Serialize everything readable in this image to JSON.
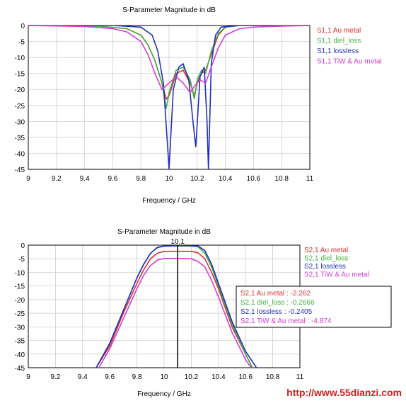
{
  "watermark": "http://www.55dianzi.com",
  "chart_data": [
    {
      "type": "line",
      "title": "S-Parameter Magnitude in dB",
      "xlabel": "Frequency / GHz",
      "ylabel": "",
      "xlim": [
        9,
        11
      ],
      "ylim": [
        -45,
        0
      ],
      "xticks": [
        "9",
        "9.2",
        "9.4",
        "9.6",
        "9.8",
        "10",
        "10.2",
        "10.4",
        "10.6",
        "10.8",
        "11"
      ],
      "yticks": [
        "0",
        "-5",
        "-10",
        "-15",
        "-20",
        "-25",
        "-30",
        "-35",
        "-40",
        "-45"
      ],
      "grid": true,
      "legend_position": "right",
      "series": [
        {
          "name": "S1,1 Au metal",
          "color": "#e03030",
          "x": [
            9.0,
            9.5,
            9.7,
            9.8,
            9.85,
            9.9,
            9.95,
            9.98,
            10.0,
            10.05,
            10.1,
            10.15,
            10.18,
            10.2,
            10.23,
            10.26,
            10.3,
            10.35,
            10.4,
            10.5,
            11.0
          ],
          "y": [
            0,
            -0.2,
            -1,
            -3,
            -6,
            -11,
            -18,
            -23,
            -22,
            -15,
            -14,
            -18,
            -22,
            -18,
            -15,
            -14,
            -9,
            -3,
            -0.5,
            0,
            0
          ]
        },
        {
          "name": "S1,1 diel_loss",
          "color": "#40b040",
          "x": [
            9.0,
            9.5,
            9.7,
            9.8,
            9.85,
            9.9,
            9.95,
            9.98,
            10.0,
            10.05,
            10.1,
            10.15,
            10.18,
            10.2,
            10.23,
            10.26,
            10.3,
            10.35,
            10.4,
            10.5,
            11.0
          ],
          "y": [
            0,
            -0.2,
            -1,
            -3,
            -6,
            -11,
            -18,
            -26,
            -21,
            -14,
            -13,
            -17,
            -23,
            -17,
            -14,
            -15,
            -8,
            -2.5,
            -0.5,
            0,
            0
          ]
        },
        {
          "name": "S1,1 lossless",
          "color": "#2030c0",
          "x": [
            9.0,
            9.6,
            9.8,
            9.88,
            9.92,
            9.96,
            9.99,
            10.0,
            10.03,
            10.07,
            10.1,
            10.14,
            10.17,
            10.19,
            10.22,
            10.25,
            10.27,
            10.28,
            10.3,
            10.33,
            10.37,
            10.5,
            11.0
          ],
          "y": [
            0,
            0,
            -0.5,
            -3,
            -8,
            -18,
            -38,
            -45,
            -20,
            -13,
            -12,
            -17,
            -30,
            -38,
            -16,
            -13,
            -30,
            -45,
            -12,
            -3,
            -0.5,
            0,
            0
          ]
        },
        {
          "name": "S1,1 TiW & Au metal",
          "color": "#d040d0",
          "x": [
            9.0,
            9.4,
            9.6,
            9.7,
            9.8,
            9.85,
            9.9,
            9.95,
            10.0,
            10.05,
            10.1,
            10.15,
            10.18,
            10.22,
            10.26,
            10.3,
            10.35,
            10.4,
            10.5,
            10.6,
            10.8,
            11.0
          ],
          "y": [
            0,
            -0.3,
            -1,
            -2,
            -5,
            -9,
            -15,
            -20,
            -18,
            -16,
            -18,
            -21,
            -19,
            -17,
            -18,
            -13,
            -7,
            -3,
            -1,
            -0.5,
            -0.2,
            0
          ]
        }
      ]
    },
    {
      "type": "line",
      "title": "S-Parameter Magnitude in dB",
      "xlabel": "Frequency / GHz",
      "ylabel": "",
      "xlim": [
        9,
        11
      ],
      "ylim": [
        -45,
        0
      ],
      "xticks": [
        "9",
        "9.2",
        "9.4",
        "9.6",
        "9.8",
        "10",
        "10.2",
        "10.4",
        "10.6",
        "10.8",
        "11"
      ],
      "yticks": [
        "0",
        "-5",
        "-10",
        "-15",
        "-20",
        "-25",
        "-30",
        "-35",
        "-40",
        "-45"
      ],
      "grid": true,
      "legend_position": "right",
      "marker": {
        "x": 10.1,
        "label": "10.1"
      },
      "series": [
        {
          "name": "S2,1 Au metal",
          "color": "#e03030",
          "x": [
            9.5,
            9.6,
            9.7,
            9.8,
            9.85,
            9.9,
            9.95,
            10.0,
            10.1,
            10.2,
            10.25,
            10.3,
            10.35,
            10.4,
            10.5,
            10.6,
            10.65
          ],
          "y": [
            -45,
            -37,
            -25,
            -14,
            -9,
            -5,
            -3,
            -2.3,
            -2.26,
            -2.3,
            -2.8,
            -5,
            -10,
            -16,
            -30,
            -40,
            -45
          ]
        },
        {
          "name": "S2,1 diel_loss",
          "color": "#40b040",
          "x": [
            9.5,
            9.6,
            9.7,
            9.8,
            9.85,
            9.9,
            9.95,
            10.0,
            10.1,
            10.2,
            10.25,
            10.3,
            10.35,
            10.4,
            10.5,
            10.6,
            10.65
          ],
          "y": [
            -45,
            -36,
            -24,
            -12,
            -7,
            -3,
            -1,
            -0.4,
            -0.27,
            -0.3,
            -0.6,
            -3,
            -8,
            -15,
            -29,
            -40,
            -45
          ]
        },
        {
          "name": "S2,1 lossless",
          "color": "#2030c0",
          "x": [
            9.5,
            9.6,
            9.7,
            9.8,
            9.85,
            9.9,
            9.95,
            10.0,
            10.1,
            10.2,
            10.25,
            10.3,
            10.35,
            10.4,
            10.5,
            10.6,
            10.68
          ],
          "y": [
            -45,
            -36,
            -24,
            -12,
            -7,
            -3,
            -0.8,
            -0.3,
            -0.24,
            -0.25,
            -0.3,
            -2,
            -7,
            -14,
            -28,
            -39,
            -45
          ]
        },
        {
          "name": "S2,1 TiW & Au metal",
          "color": "#d040d0",
          "x": [
            9.52,
            9.6,
            9.7,
            9.8,
            9.85,
            9.9,
            9.95,
            10.0,
            10.1,
            10.2,
            10.25,
            10.3,
            10.35,
            10.4,
            10.5,
            10.6,
            10.64
          ],
          "y": [
            -45,
            -38,
            -27,
            -16,
            -11,
            -7.5,
            -5.5,
            -4.9,
            -4.87,
            -5.0,
            -6,
            -8,
            -13,
            -19,
            -32,
            -42,
            -45
          ]
        }
      ],
      "annotation": {
        "lines": [
          {
            "text": "S2,1 Au metal : -2.262",
            "color": "#e03030"
          },
          {
            "text": "S2,1 diel_loss : -0.2666",
            "color": "#40b040"
          },
          {
            "text": "S2,1 lossless : -0.2405",
            "color": "#2030c0"
          },
          {
            "text": "S2,1 TiW & Au metal : -4.874",
            "color": "#d040d0"
          }
        ]
      }
    }
  ]
}
